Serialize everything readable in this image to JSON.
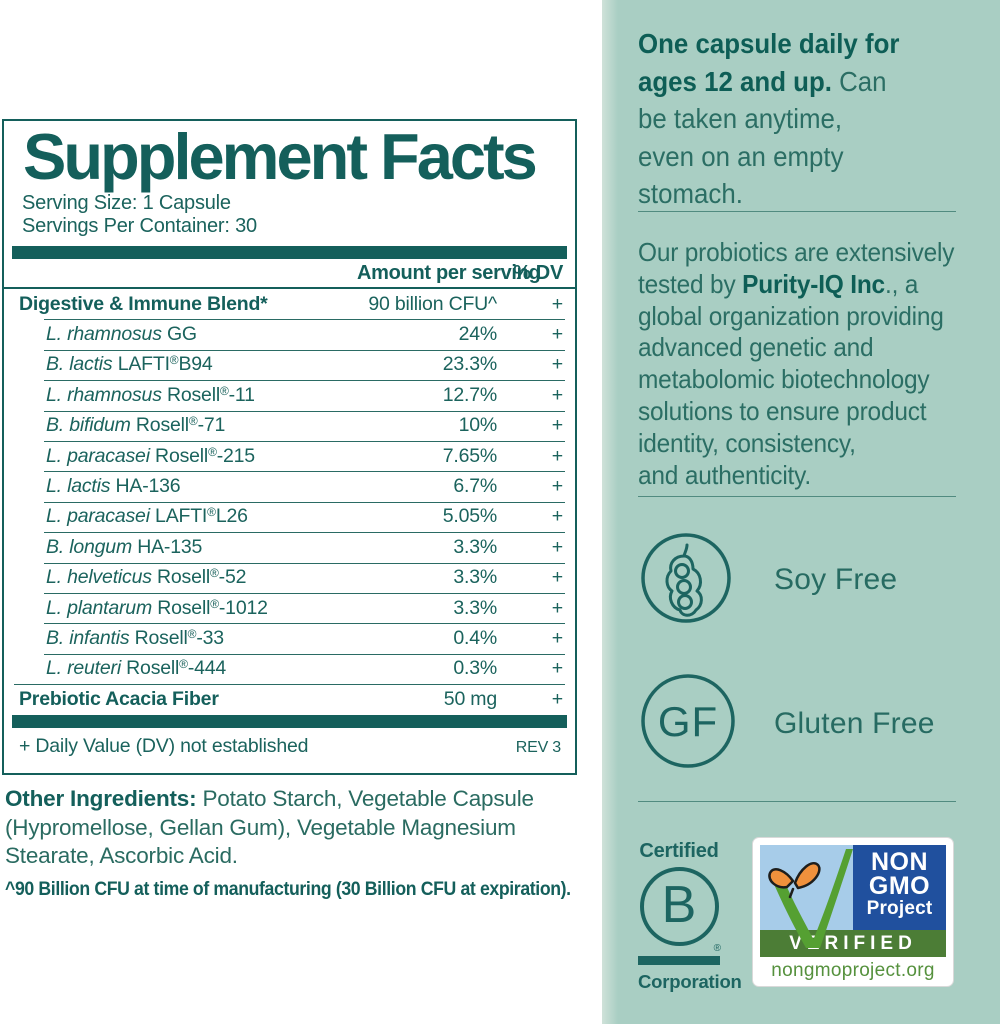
{
  "colors": {
    "teal": "#145f5b",
    "panel_bg": "#a9cec3",
    "rule": "#518b80",
    "bcorp_teal": "#1d6561",
    "ngp_sky_blue": "#a7cce9",
    "ngp_dark_blue": "#20509e",
    "ngp_band_green": "#4c7d36",
    "ngp_grass_green": "#55a032",
    "ngp_url_green": "#55913d",
    "butterfly_orange": "#f0913c"
  },
  "supplement_facts": {
    "title": "Supplement Facts",
    "serving_size": "Serving Size: 1 Capsule",
    "servings_per_container": "Servings Per Container: 30",
    "col_amount": "Amount per serving",
    "col_dv": "% DV",
    "rows": [
      {
        "italic": "",
        "name": "Digestive & Immune Blend*",
        "amount": "90 billion CFU^",
        "dv": "+",
        "bold": true,
        "indent": false,
        "sep": "none"
      },
      {
        "italic": "L. rhamnosus",
        "name": " GG",
        "amount": "24%",
        "dv": "+",
        "bold": false,
        "indent": true,
        "sep": "indent"
      },
      {
        "italic": "B. lactis",
        "name": " LAFTI®B94",
        "amount": "23.3%",
        "dv": "+",
        "bold": false,
        "indent": true,
        "sep": "indent"
      },
      {
        "italic": "L. rhamnosus",
        "name": " Rosell®-11",
        "amount": "12.7%",
        "dv": "+",
        "bold": false,
        "indent": true,
        "sep": "indent"
      },
      {
        "italic": "B. bifidum",
        "name": " Rosell®-71",
        "amount": "10%",
        "dv": "+",
        "bold": false,
        "indent": true,
        "sep": "indent"
      },
      {
        "italic": "L. paracasei",
        "name": " Rosell®-215",
        "amount": "7.65%",
        "dv": "+",
        "bold": false,
        "indent": true,
        "sep": "indent"
      },
      {
        "italic": "L. lactis",
        "name": " HA-136",
        "amount": "6.7%",
        "dv": "+",
        "bold": false,
        "indent": true,
        "sep": "indent"
      },
      {
        "italic": "L. paracasei",
        "name": " LAFTI®L26",
        "amount": "5.05%",
        "dv": "+",
        "bold": false,
        "indent": true,
        "sep": "indent"
      },
      {
        "italic": "B. longum",
        "name": " HA-135",
        "amount": "3.3%",
        "dv": "+",
        "bold": false,
        "indent": true,
        "sep": "indent"
      },
      {
        "italic": "L. helveticus",
        "name": " Rosell®-52",
        "amount": "3.3%",
        "dv": "+",
        "bold": false,
        "indent": true,
        "sep": "indent"
      },
      {
        "italic": "L. plantarum",
        "name": " Rosell®-1012",
        "amount": "3.3%",
        "dv": "+",
        "bold": false,
        "indent": true,
        "sep": "indent"
      },
      {
        "italic": "B. infantis",
        "name": " Rosell®-33",
        "amount": "0.4%",
        "dv": "+",
        "bold": false,
        "indent": true,
        "sep": "indent"
      },
      {
        "italic": "L. reuteri",
        "name": " Rosell®-444",
        "amount": "0.3%",
        "dv": "+",
        "bold": false,
        "indent": true,
        "sep": "indent"
      },
      {
        "italic": "",
        "name": "Prebiotic Acacia Fiber",
        "amount": "50 mg",
        "dv": "+",
        "bold": true,
        "indent": false,
        "sep": "full"
      }
    ],
    "footer_note": "+ Daily Value (DV) not established",
    "footer_rev": "REV 3"
  },
  "other_ingredients": {
    "lines": [
      [
        {
          "t": "Other Ingredients:",
          "b": true
        },
        {
          "t": " Potato Starch, Vegetable Capsule",
          "b": false
        }
      ],
      [
        {
          "t": "(Hypromellose, Gellan Gum), Vegetable Magnesium",
          "b": false
        }
      ],
      [
        {
          "t": "Stearate, Ascorbic Acid.",
          "b": false
        }
      ]
    ]
  },
  "cfu_footnote": "^90 Billion CFU at time of manufacturing (30 Billion CFU at expiration).",
  "right_panel": {
    "usage_lines": [
      [
        {
          "t": "One capsule daily for",
          "b": true
        }
      ],
      [
        {
          "t": "ages 12 and up.",
          "b": true
        },
        {
          "t": " Can",
          "b": false
        }
      ],
      [
        {
          "t": "be taken anytime,",
          "b": false
        }
      ],
      [
        {
          "t": "even on an empty",
          "b": false
        }
      ],
      [
        {
          "t": "stomach.",
          "b": false
        }
      ]
    ],
    "testing_lines": [
      [
        {
          "t": "Our probiotics are extensively",
          "b": false
        }
      ],
      [
        {
          "t": "tested by ",
          "b": false
        },
        {
          "t": "Purity-IQ Inc",
          "b": true
        },
        {
          "t": "., a",
          "b": false
        }
      ],
      [
        {
          "t": "global organization providing",
          "b": false
        }
      ],
      [
        {
          "t": "advanced genetic and",
          "b": false
        }
      ],
      [
        {
          "t": "metabolomic biotechnology",
          "b": false
        }
      ],
      [
        {
          "t": "solutions to ensure product",
          "b": false
        }
      ],
      [
        {
          "t": "identity, consistency,",
          "b": false
        }
      ],
      [
        {
          "t": "and authenticity.",
          "b": false
        }
      ]
    ],
    "soy_free_label": "Soy Free",
    "gluten_free_label": "Gluten Free",
    "gluten_free_abbr": "GF",
    "bcorp": {
      "certified": "Certified",
      "b": "B",
      "reg": "®",
      "corporation": "Corporation"
    },
    "nongmo": {
      "non": "NON",
      "gmo": "GMO",
      "project": "Project",
      "verified": "VERIFIED",
      "url": "nongmoproject.org"
    }
  }
}
